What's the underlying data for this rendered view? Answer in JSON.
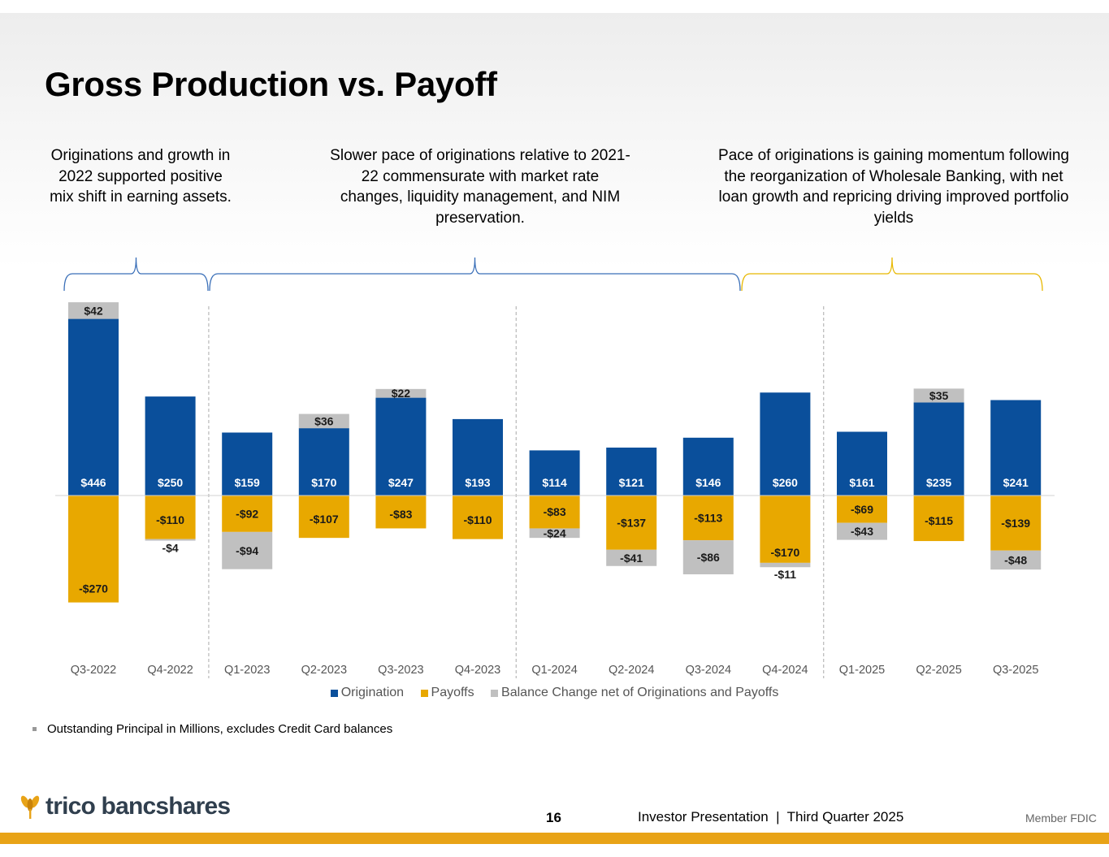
{
  "title": "Gross Production vs. Payoff",
  "notes": [
    "Originations and growth in 2022 supported positive mix shift in earning assets.",
    "Slower pace of originations relative to 2021-22 commensurate with market rate changes, liquidity management, and NIM preservation.",
    "Pace of originations is gaining momentum following the reorganization of Wholesale Banking, with net loan growth and repricing driving improved portfolio yields"
  ],
  "chart_data": {
    "type": "bar",
    "stacked": true,
    "categories": [
      "Q3-2022",
      "Q4-2022",
      "Q1-2023",
      "Q2-2023",
      "Q3-2023",
      "Q4-2023",
      "Q1-2024",
      "Q2-2024",
      "Q3-2024",
      "Q4-2024",
      "Q1-2025",
      "Q2-2025",
      "Q3-2025"
    ],
    "series": [
      {
        "name": "Origination",
        "color": "#0a4f9b",
        "values": [
          446,
          250,
          159,
          170,
          247,
          193,
          114,
          121,
          146,
          260,
          161,
          235,
          241
        ],
        "labels": [
          "$446",
          "$250",
          "$159",
          "$170",
          "$247",
          "$193",
          "$114",
          "$121",
          "$146",
          "$260",
          "$161",
          "$235",
          "$241"
        ]
      },
      {
        "name": "Payoffs",
        "color": "#e8a800",
        "values": [
          -270,
          -110,
          -92,
          -107,
          -83,
          -110,
          -83,
          -137,
          -113,
          -170,
          -69,
          -115,
          -139
        ],
        "labels": [
          "-$270",
          "-$110",
          "-$92",
          "-$107",
          "-$83",
          "-$110",
          "-$83",
          "-$137",
          "-$113",
          "-$170",
          "-$69",
          "-$115",
          "-$139"
        ]
      },
      {
        "name": "Balance Change net of Originations and Payoffs",
        "color": "#c0c0c0",
        "values": [
          42,
          -4,
          -94,
          36,
          22,
          null,
          -24,
          -41,
          -86,
          -11,
          -43,
          35,
          -48
        ],
        "labels": [
          "$42",
          "-$4",
          "-$94",
          "$36",
          "$22",
          null,
          "-$24",
          "-$41",
          "-$86",
          "-$11",
          "-$43",
          "$35",
          "-$48"
        ]
      }
    ],
    "group_separators_after": [
      "Q4-2022",
      "Q4-2023",
      "Q4-2024"
    ],
    "legend_position": "bottom",
    "ylim": [
      -270,
      488
    ]
  },
  "footnote": "Outstanding Principal in Millions, excludes Credit Card balances",
  "footer": {
    "logo_text": "trico bancshares",
    "page_number": "16",
    "presentation": "Investor Presentation  |  Third Quarter 2025",
    "fdic": "Member FDIC"
  },
  "colors": {
    "accent_gold": "#e8a317",
    "logo_text": "#303f4e"
  }
}
